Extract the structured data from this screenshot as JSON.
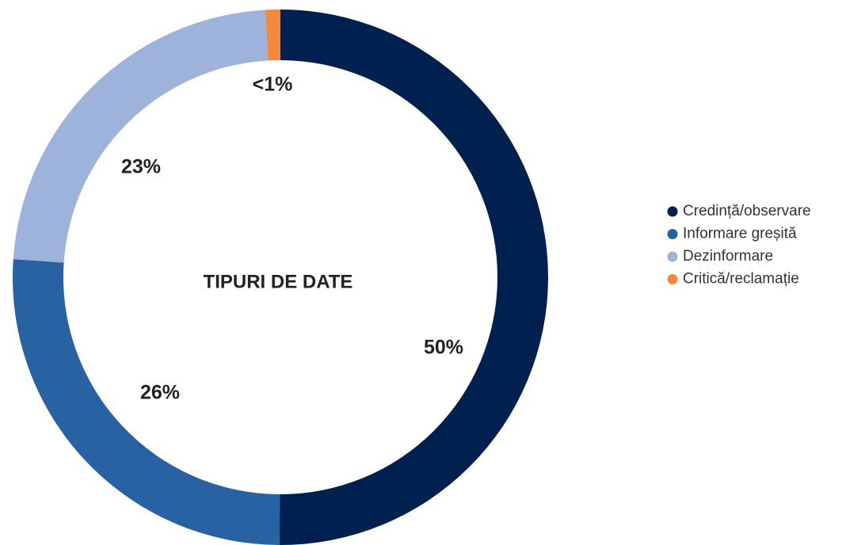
{
  "chart_data": {
    "type": "pie",
    "title": "TIPURI DE DATE",
    "categories": [
      "Credință/observare",
      "Informare greșită",
      "Dezinformare",
      "Critică/reclamație"
    ],
    "values": [
      50,
      26,
      23,
      0.9
    ],
    "value_labels": [
      "50%",
      "26%",
      "23%",
      "<1%"
    ],
    "colors": [
      "#00214f",
      "#2862a2",
      "#9eb3dc",
      "#f4883d"
    ],
    "donut": true,
    "legend": "right"
  }
}
